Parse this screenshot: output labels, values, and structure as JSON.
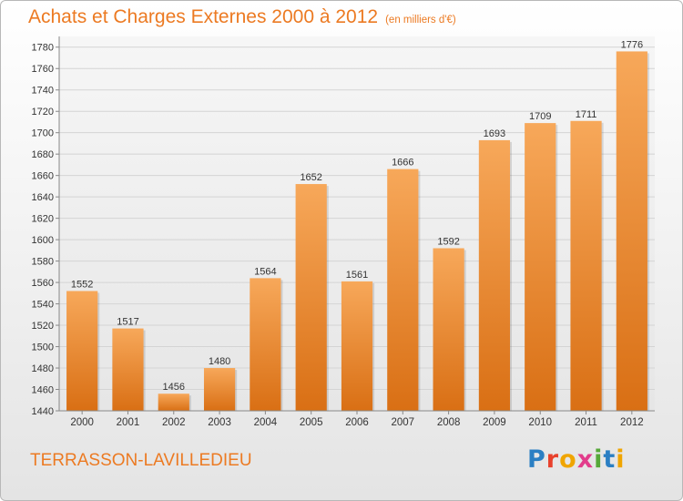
{
  "header": {
    "title": "Achats et Charges Externes 2000 à 2012",
    "unit": "(en milliers d'€)"
  },
  "footer": {
    "commune": "TERRASSON-LAVILLEDIEU",
    "logo_text": "Proxiti",
    "logo_colors": [
      "#2b7fc3",
      "#e8412c",
      "#f0a500",
      "#e23c8b",
      "#56a839",
      "#2b7fc3",
      "#f0a500"
    ]
  },
  "colors": {
    "bar_top": "#f7a85a",
    "bar_bottom": "#d96f14",
    "accent": "#ec7a22"
  },
  "chart_data": {
    "type": "bar",
    "categories": [
      "2000",
      "2001",
      "2002",
      "2003",
      "2004",
      "2005",
      "2006",
      "2007",
      "2008",
      "2009",
      "2010",
      "2011",
      "2012"
    ],
    "values": [
      1552,
      1517,
      1456,
      1480,
      1564,
      1652,
      1561,
      1666,
      1592,
      1693,
      1709,
      1711,
      1776
    ],
    "value_labels": [
      "1552",
      "1517",
      "1456",
      "1480",
      "1564",
      "1652",
      "1561",
      "1666",
      "1592",
      "1693",
      "1709",
      "1711",
      "1776"
    ],
    "title": "Achats et Charges Externes 2000 à 2012",
    "xlabel": "",
    "ylabel": "",
    "ylim": [
      1440,
      1790
    ],
    "yticks": [
      1440,
      1460,
      1480,
      1500,
      1520,
      1540,
      1560,
      1580,
      1600,
      1620,
      1640,
      1660,
      1680,
      1700,
      1720,
      1740,
      1760,
      1780
    ],
    "ytick_labels": [
      "1440",
      "1460",
      "1480",
      "1500",
      "1520",
      "1540",
      "1560",
      "1580",
      "1600",
      "1620",
      "1640",
      "1660",
      "1680",
      "1700",
      "1720",
      "1740",
      "1760",
      "1780"
    ],
    "grid": true,
    "legend": "none"
  }
}
